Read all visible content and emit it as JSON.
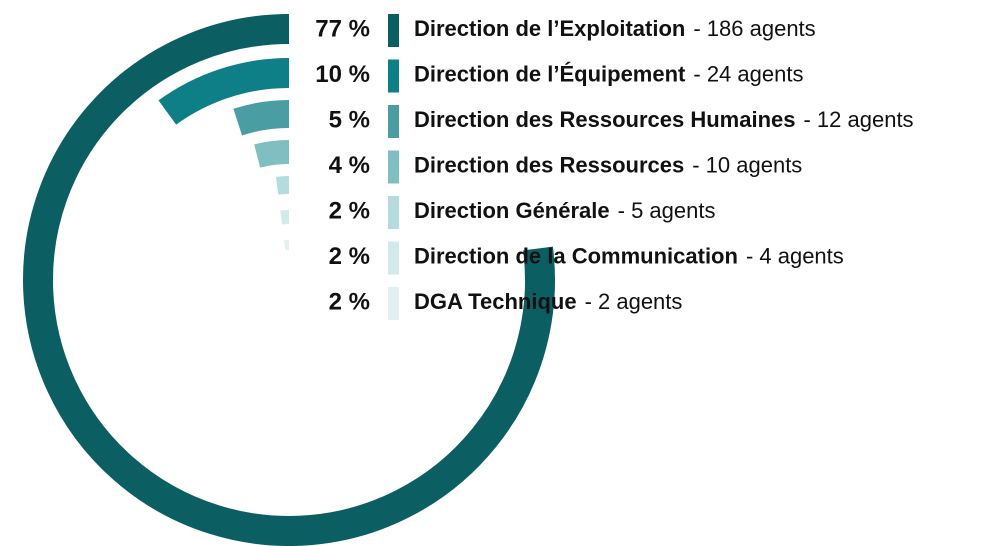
{
  "chart_data": {
    "type": "radial_bar",
    "categories": [
      "Direction de l’Exploitation",
      "Direction de l’Équipement",
      "Direction des Ressources Humaines",
      "Direction des Ressources",
      "Direction Générale",
      "Direction de la Communication",
      "DGA Technique"
    ],
    "values": [
      77,
      10,
      5,
      4,
      2,
      2,
      2
    ],
    "value_labels": [
      "77 %",
      "10 %",
      "5 %",
      "4 %",
      "2 %",
      "2 %",
      "2 %"
    ],
    "agent_labels": [
      "- 186 agents",
      "- 24 agents",
      "- 12 agents",
      "- 10 agents",
      "- 5 agents",
      "- 4 agents",
      "- 2 agents"
    ],
    "colors": [
      "#0b5f63",
      "#0e7f86",
      "#4a9ea3",
      "#7fbfc2",
      "#b5dcdd",
      "#d3eaeb",
      "#e3f0f1"
    ]
  }
}
